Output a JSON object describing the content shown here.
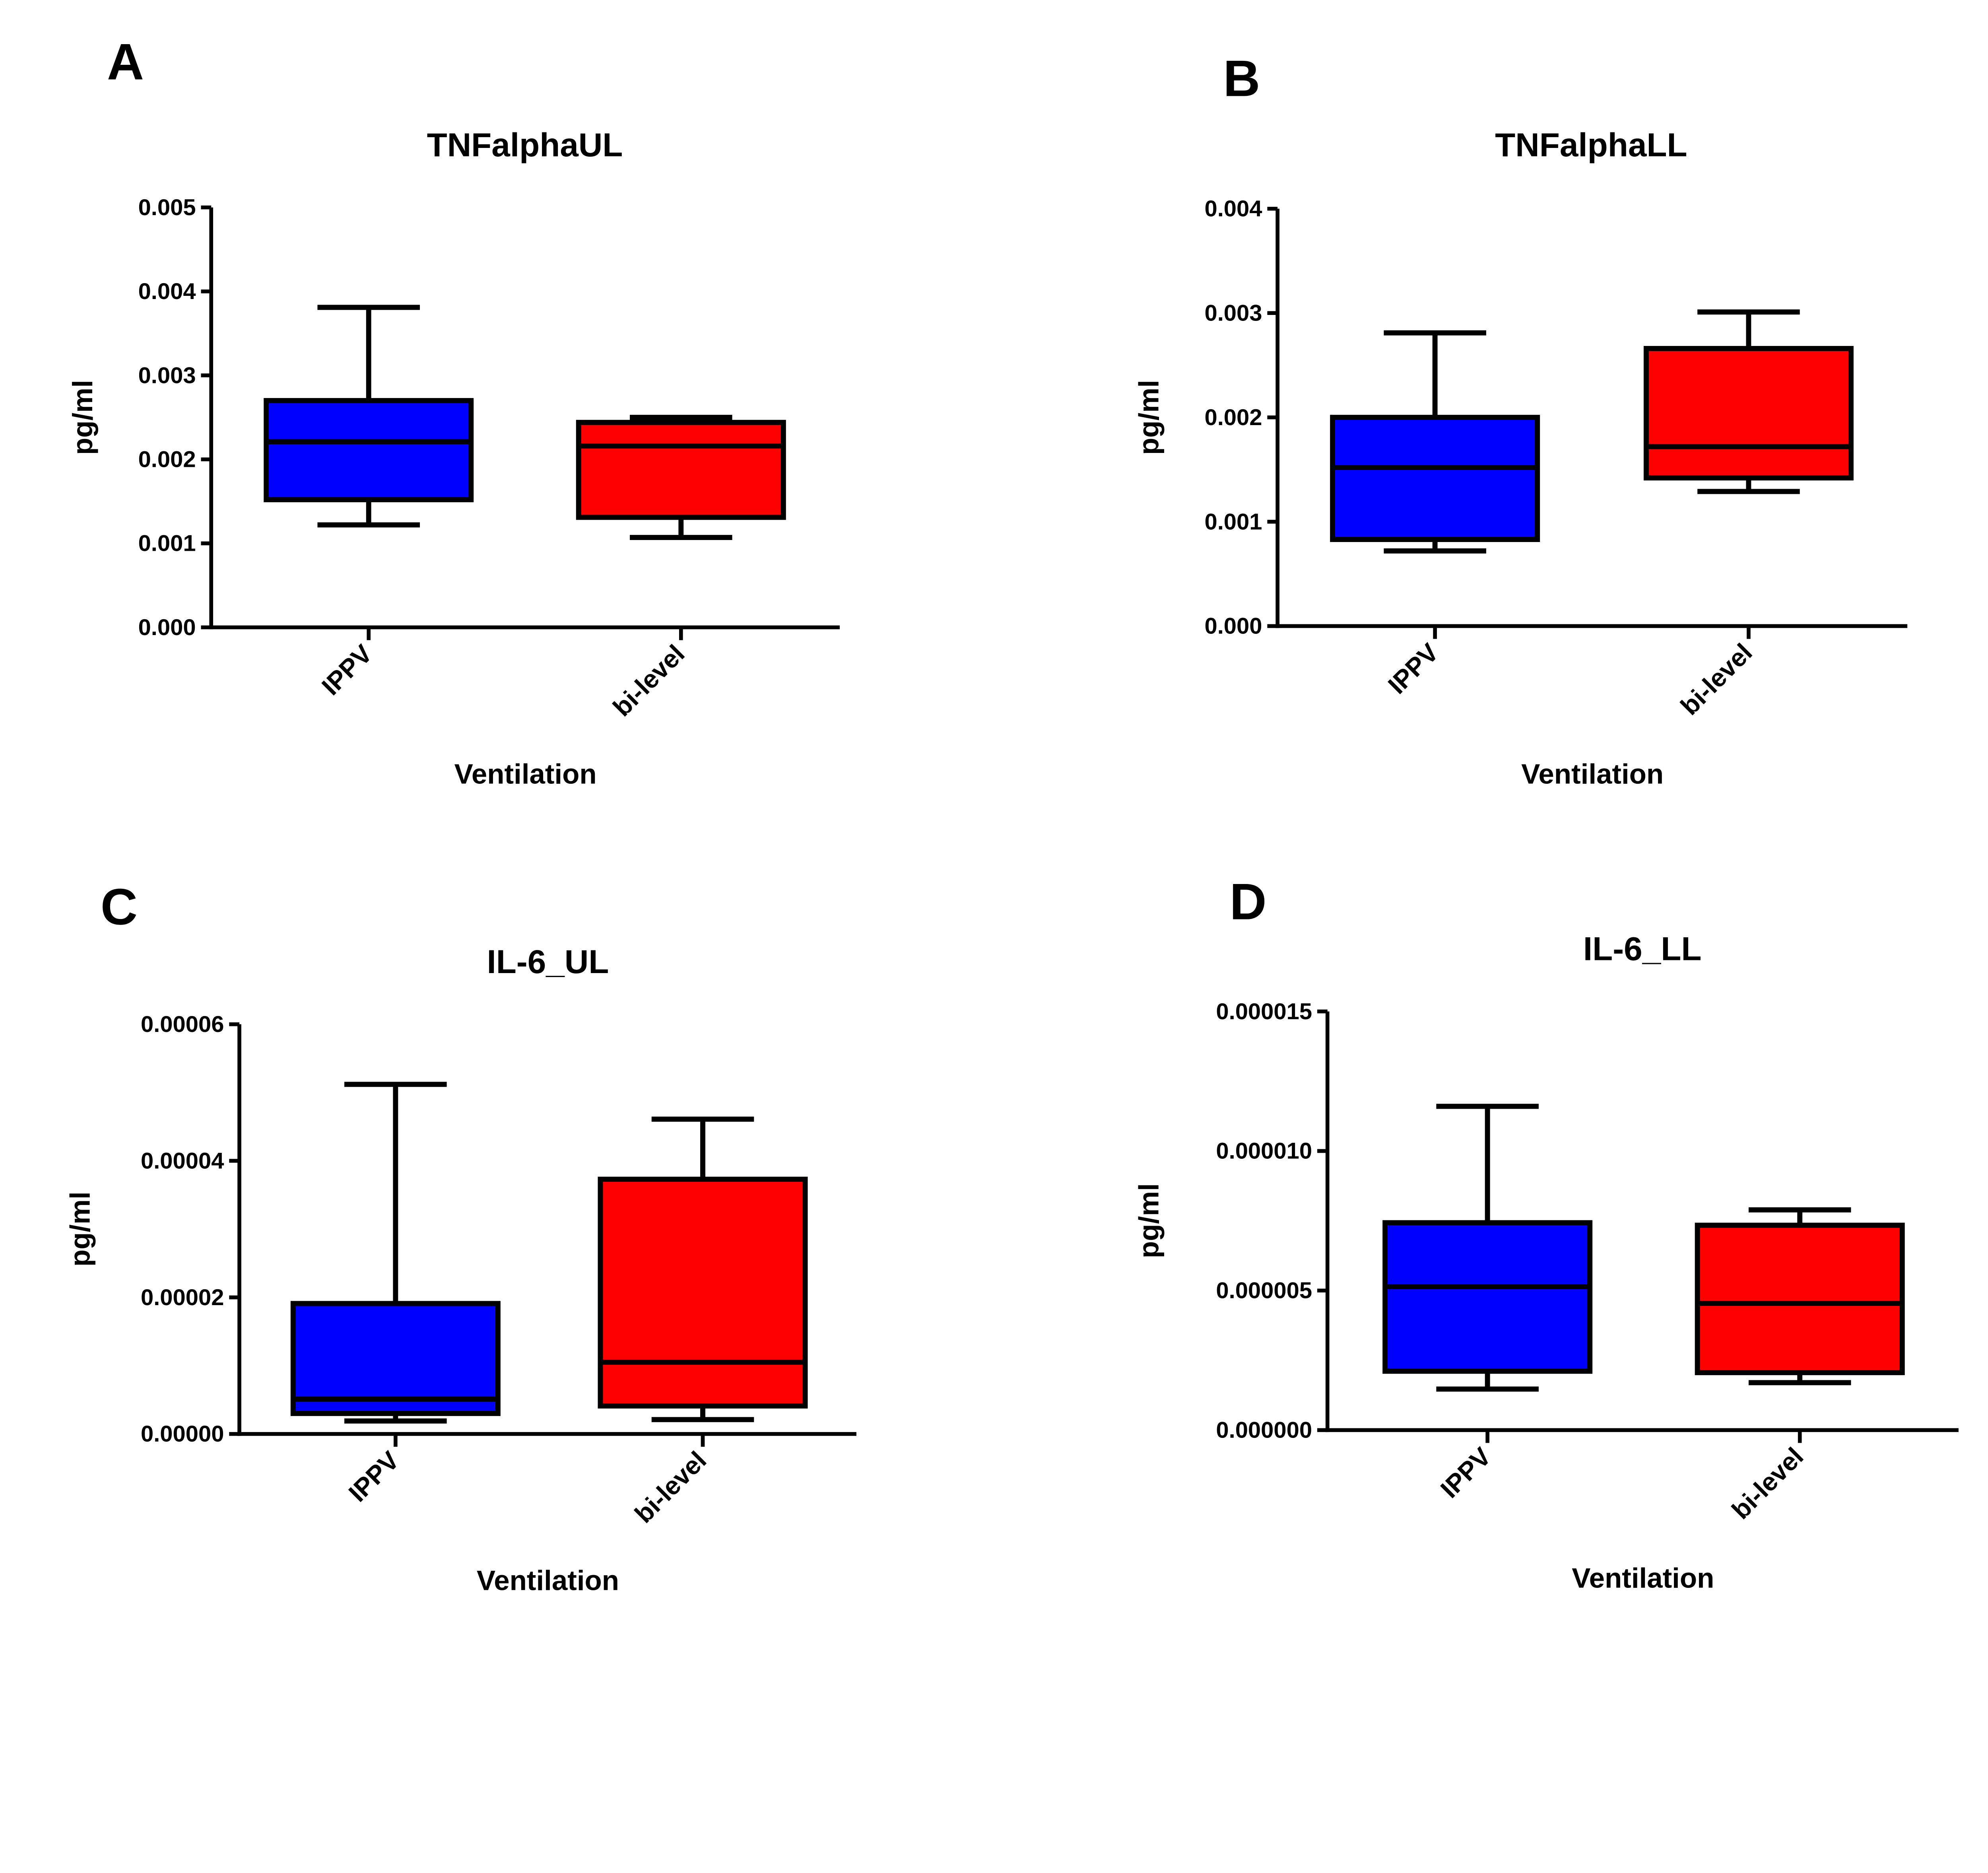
{
  "chart_data": [
    {
      "panel": "A",
      "type": "box",
      "title": "TNFalphaUL",
      "xlabel": "Ventilation",
      "ylabel": "pg/ml",
      "ylim": [
        0,
        0.005
      ],
      "yticks": [
        "0.000",
        "0.001",
        "0.002",
        "0.003",
        "0.004",
        "0.005"
      ],
      "categories": [
        "IPPV",
        "bi-level"
      ],
      "colors": [
        "#0000ff",
        "#ff0000"
      ],
      "boxes": [
        {
          "min": 0.00122,
          "q1": 0.00152,
          "median": 0.00221,
          "q3": 0.0027,
          "max": 0.00381
        },
        {
          "min": 0.00107,
          "q1": 0.00131,
          "median": 0.00216,
          "q3": 0.00244,
          "max": 0.0025
        }
      ]
    },
    {
      "panel": "B",
      "type": "box",
      "title": "TNFalphaLL",
      "xlabel": "Ventilation",
      "ylabel": "pg/ml",
      "ylim": [
        0,
        0.004
      ],
      "yticks": [
        "0.000",
        "0.001",
        "0.002",
        "0.003",
        "0.004"
      ],
      "categories": [
        "IPPV",
        "bi-level"
      ],
      "colors": [
        "#0000ff",
        "#ff0000"
      ],
      "boxes": [
        {
          "min": 0.00072,
          "q1": 0.00083,
          "median": 0.00152,
          "q3": 0.002,
          "max": 0.00281
        },
        {
          "min": 0.00129,
          "q1": 0.00142,
          "median": 0.00172,
          "q3": 0.00266,
          "max": 0.00301
        }
      ]
    },
    {
      "panel": "C",
      "type": "box",
      "title": "IL-6_UL",
      "xlabel": "Ventilation",
      "ylabel": "pg/ml",
      "ylim": [
        0,
        6e-05
      ],
      "yticks": [
        "0.00000",
        "0.00002",
        "0.00004",
        "0.00006"
      ],
      "categories": [
        "IPPV",
        "bi-level"
      ],
      "colors": [
        "#0000ff",
        "#ff0000"
      ],
      "boxes": [
        {
          "min": 1.9e-06,
          "q1": 3e-06,
          "median": 5.1e-06,
          "q3": 1.91e-05,
          "max": 5.12e-05
        },
        {
          "min": 2.1e-06,
          "q1": 4.1e-06,
          "median": 1.05e-05,
          "q3": 3.73e-05,
          "max": 4.61e-05
        }
      ]
    },
    {
      "panel": "D",
      "type": "box",
      "title": "IL-6_LL",
      "xlabel": "Ventilation",
      "ylabel": "pg/ml",
      "ylim": [
        0,
        1.5e-05
      ],
      "yticks": [
        "0.000000",
        "0.000005",
        "0.000010",
        "0.000015"
      ],
      "categories": [
        "IPPV",
        "bi-level"
      ],
      "colors": [
        "#0000ff",
        "#ff0000"
      ],
      "boxes": [
        {
          "min": 1.47e-06,
          "q1": 2.11e-06,
          "median": 5.14e-06,
          "q3": 7.43e-06,
          "max": 1.16e-05
        },
        {
          "min": 1.7e-06,
          "q1": 2.06e-06,
          "median": 4.54e-06,
          "q3": 7.34e-06,
          "max": 7.89e-06
        }
      ]
    }
  ]
}
